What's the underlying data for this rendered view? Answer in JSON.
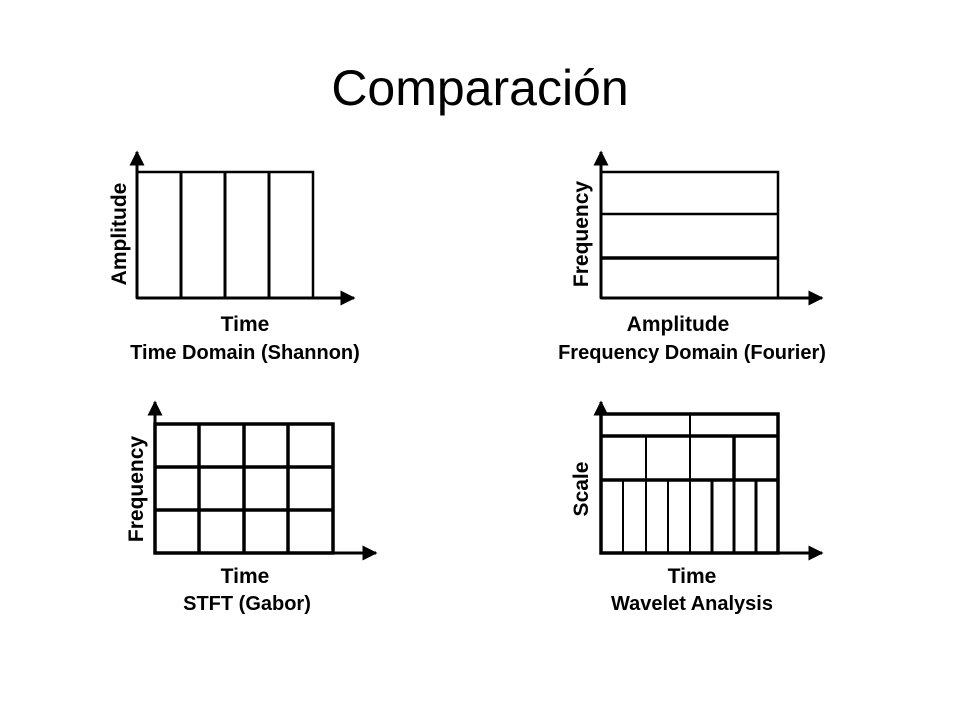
{
  "title": "Comparación",
  "panels": [
    {
      "xlabel": "Time",
      "ylabel": "Amplitude",
      "caption": "Time Domain (Shannon)"
    },
    {
      "xlabel": "Amplitude",
      "ylabel": "Frequency",
      "caption": "Frequency Domain (Fourier)"
    },
    {
      "xlabel": "Time",
      "ylabel": "Frequency",
      "caption": "STFT (Gabor)"
    },
    {
      "xlabel": "Time",
      "ylabel": "Scale",
      "caption": "Wavelet Analysis"
    }
  ]
}
